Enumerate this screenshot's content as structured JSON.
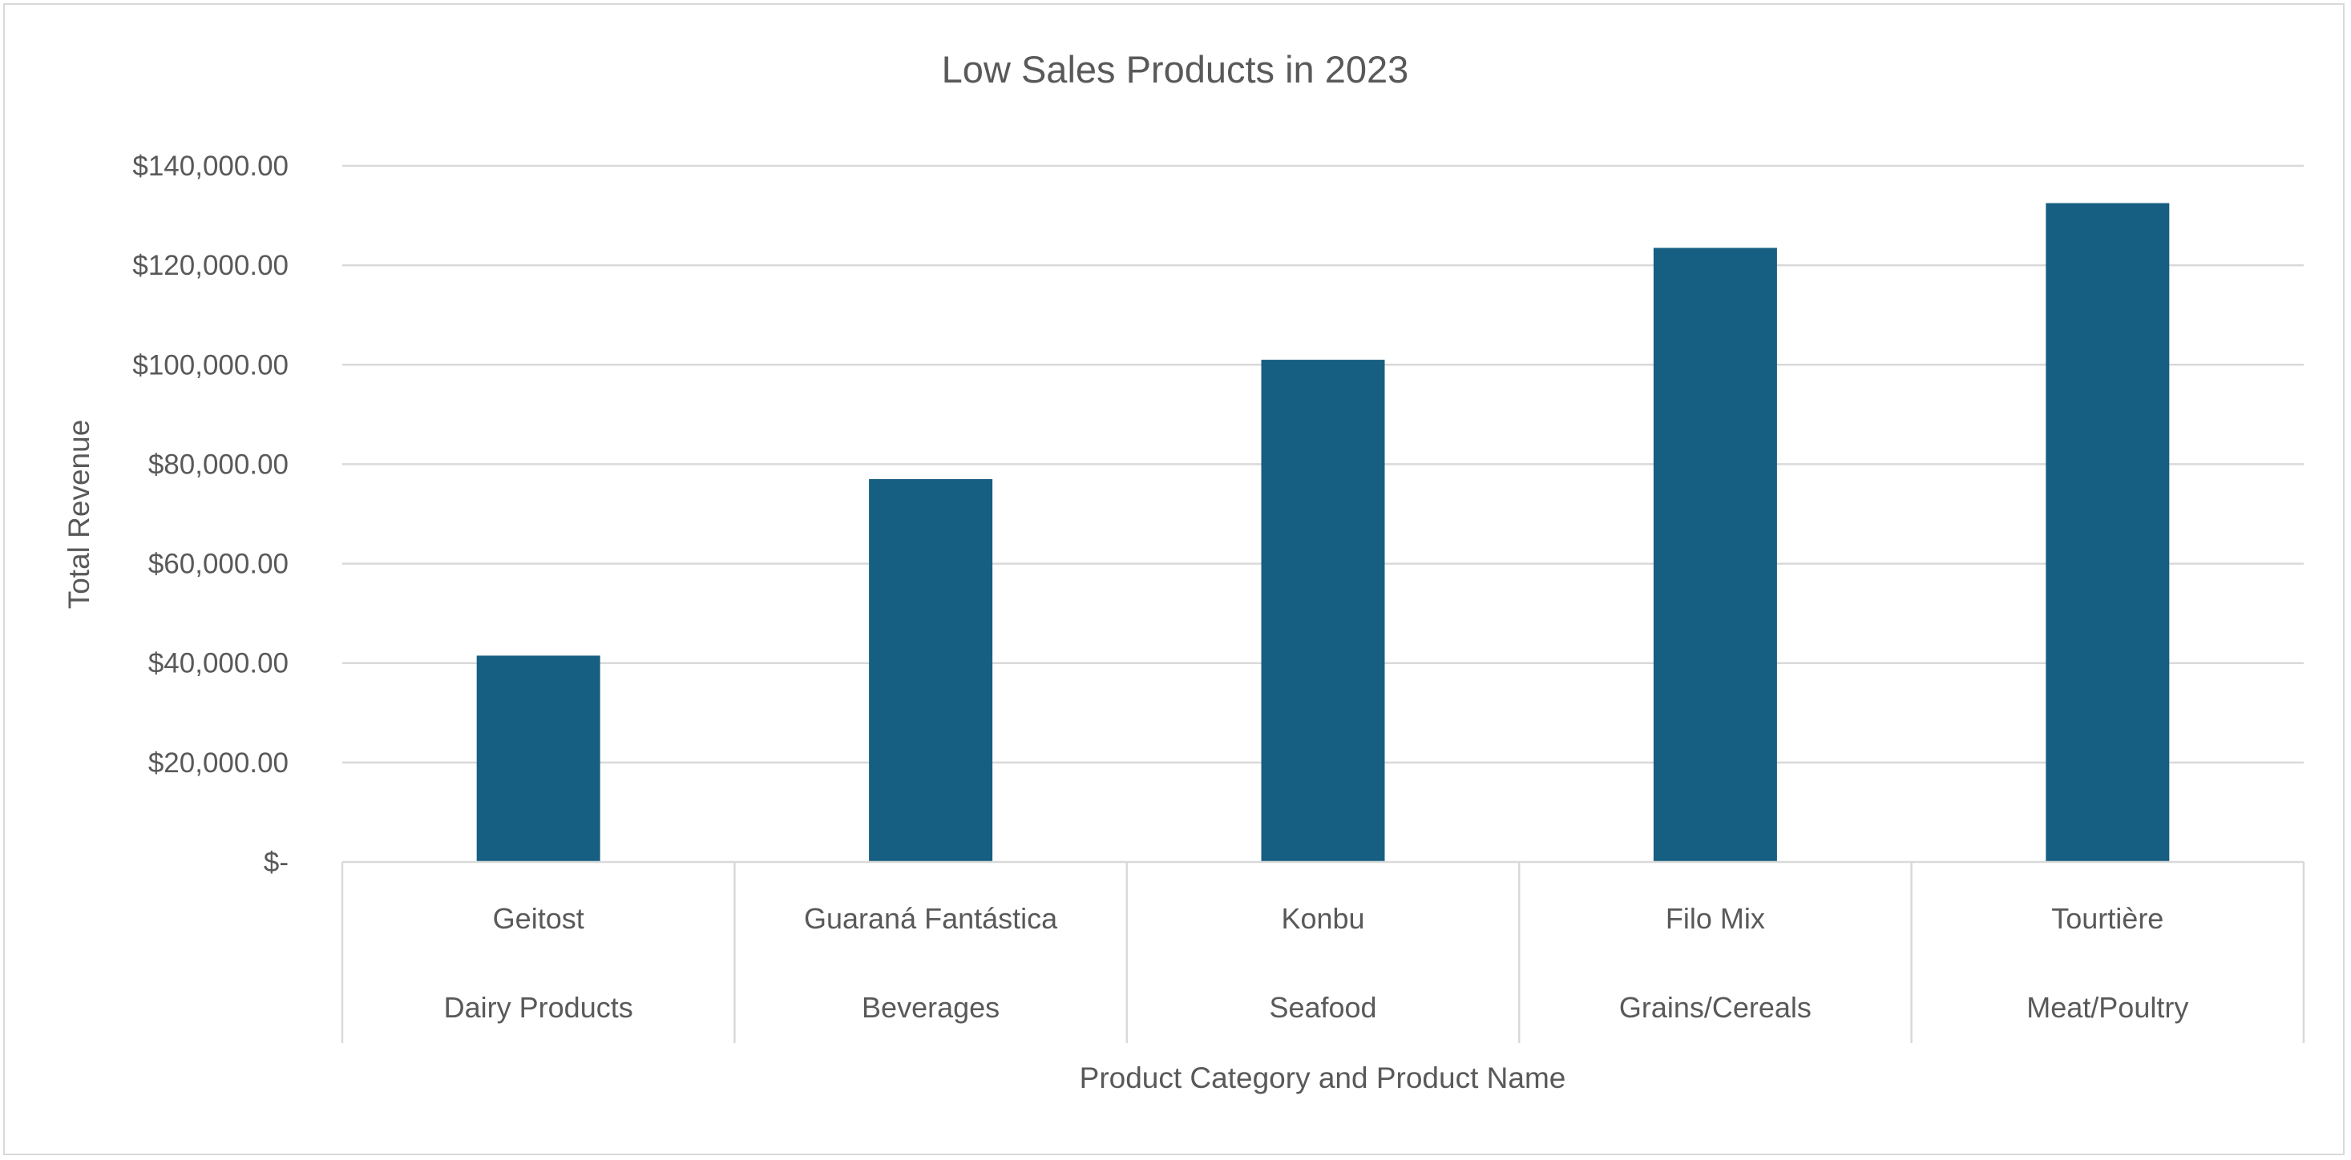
{
  "chart_data": {
    "type": "bar",
    "title": "Low Sales Products in 2023",
    "xlabel": "Product Category and Product Name",
    "ylabel": "Total Revenue",
    "ylim": [
      0,
      140000
    ],
    "yticks": [
      0,
      20000,
      40000,
      60000,
      80000,
      100000,
      120000,
      140000
    ],
    "ytick_labels": [
      "$-",
      "$20,000.00",
      "$40,000.00",
      "$60,000.00",
      "$80,000.00",
      "$100,000.00",
      "$120,000.00",
      "$140,000.00"
    ],
    "categories": [
      {
        "name": "Geitost",
        "group": "Dairy Products"
      },
      {
        "name": "Guaraná Fantástica",
        "group": "Beverages"
      },
      {
        "name": "Konbu",
        "group": "Seafood"
      },
      {
        "name": "Filo Mix",
        "group": "Grains/Cereals"
      },
      {
        "name": "Tourtière",
        "group": "Meat/Poultry"
      }
    ],
    "values": [
      41500,
      77000,
      101000,
      123500,
      132500
    ],
    "bar_color": "#175f82",
    "grid": true,
    "legend": "none"
  }
}
